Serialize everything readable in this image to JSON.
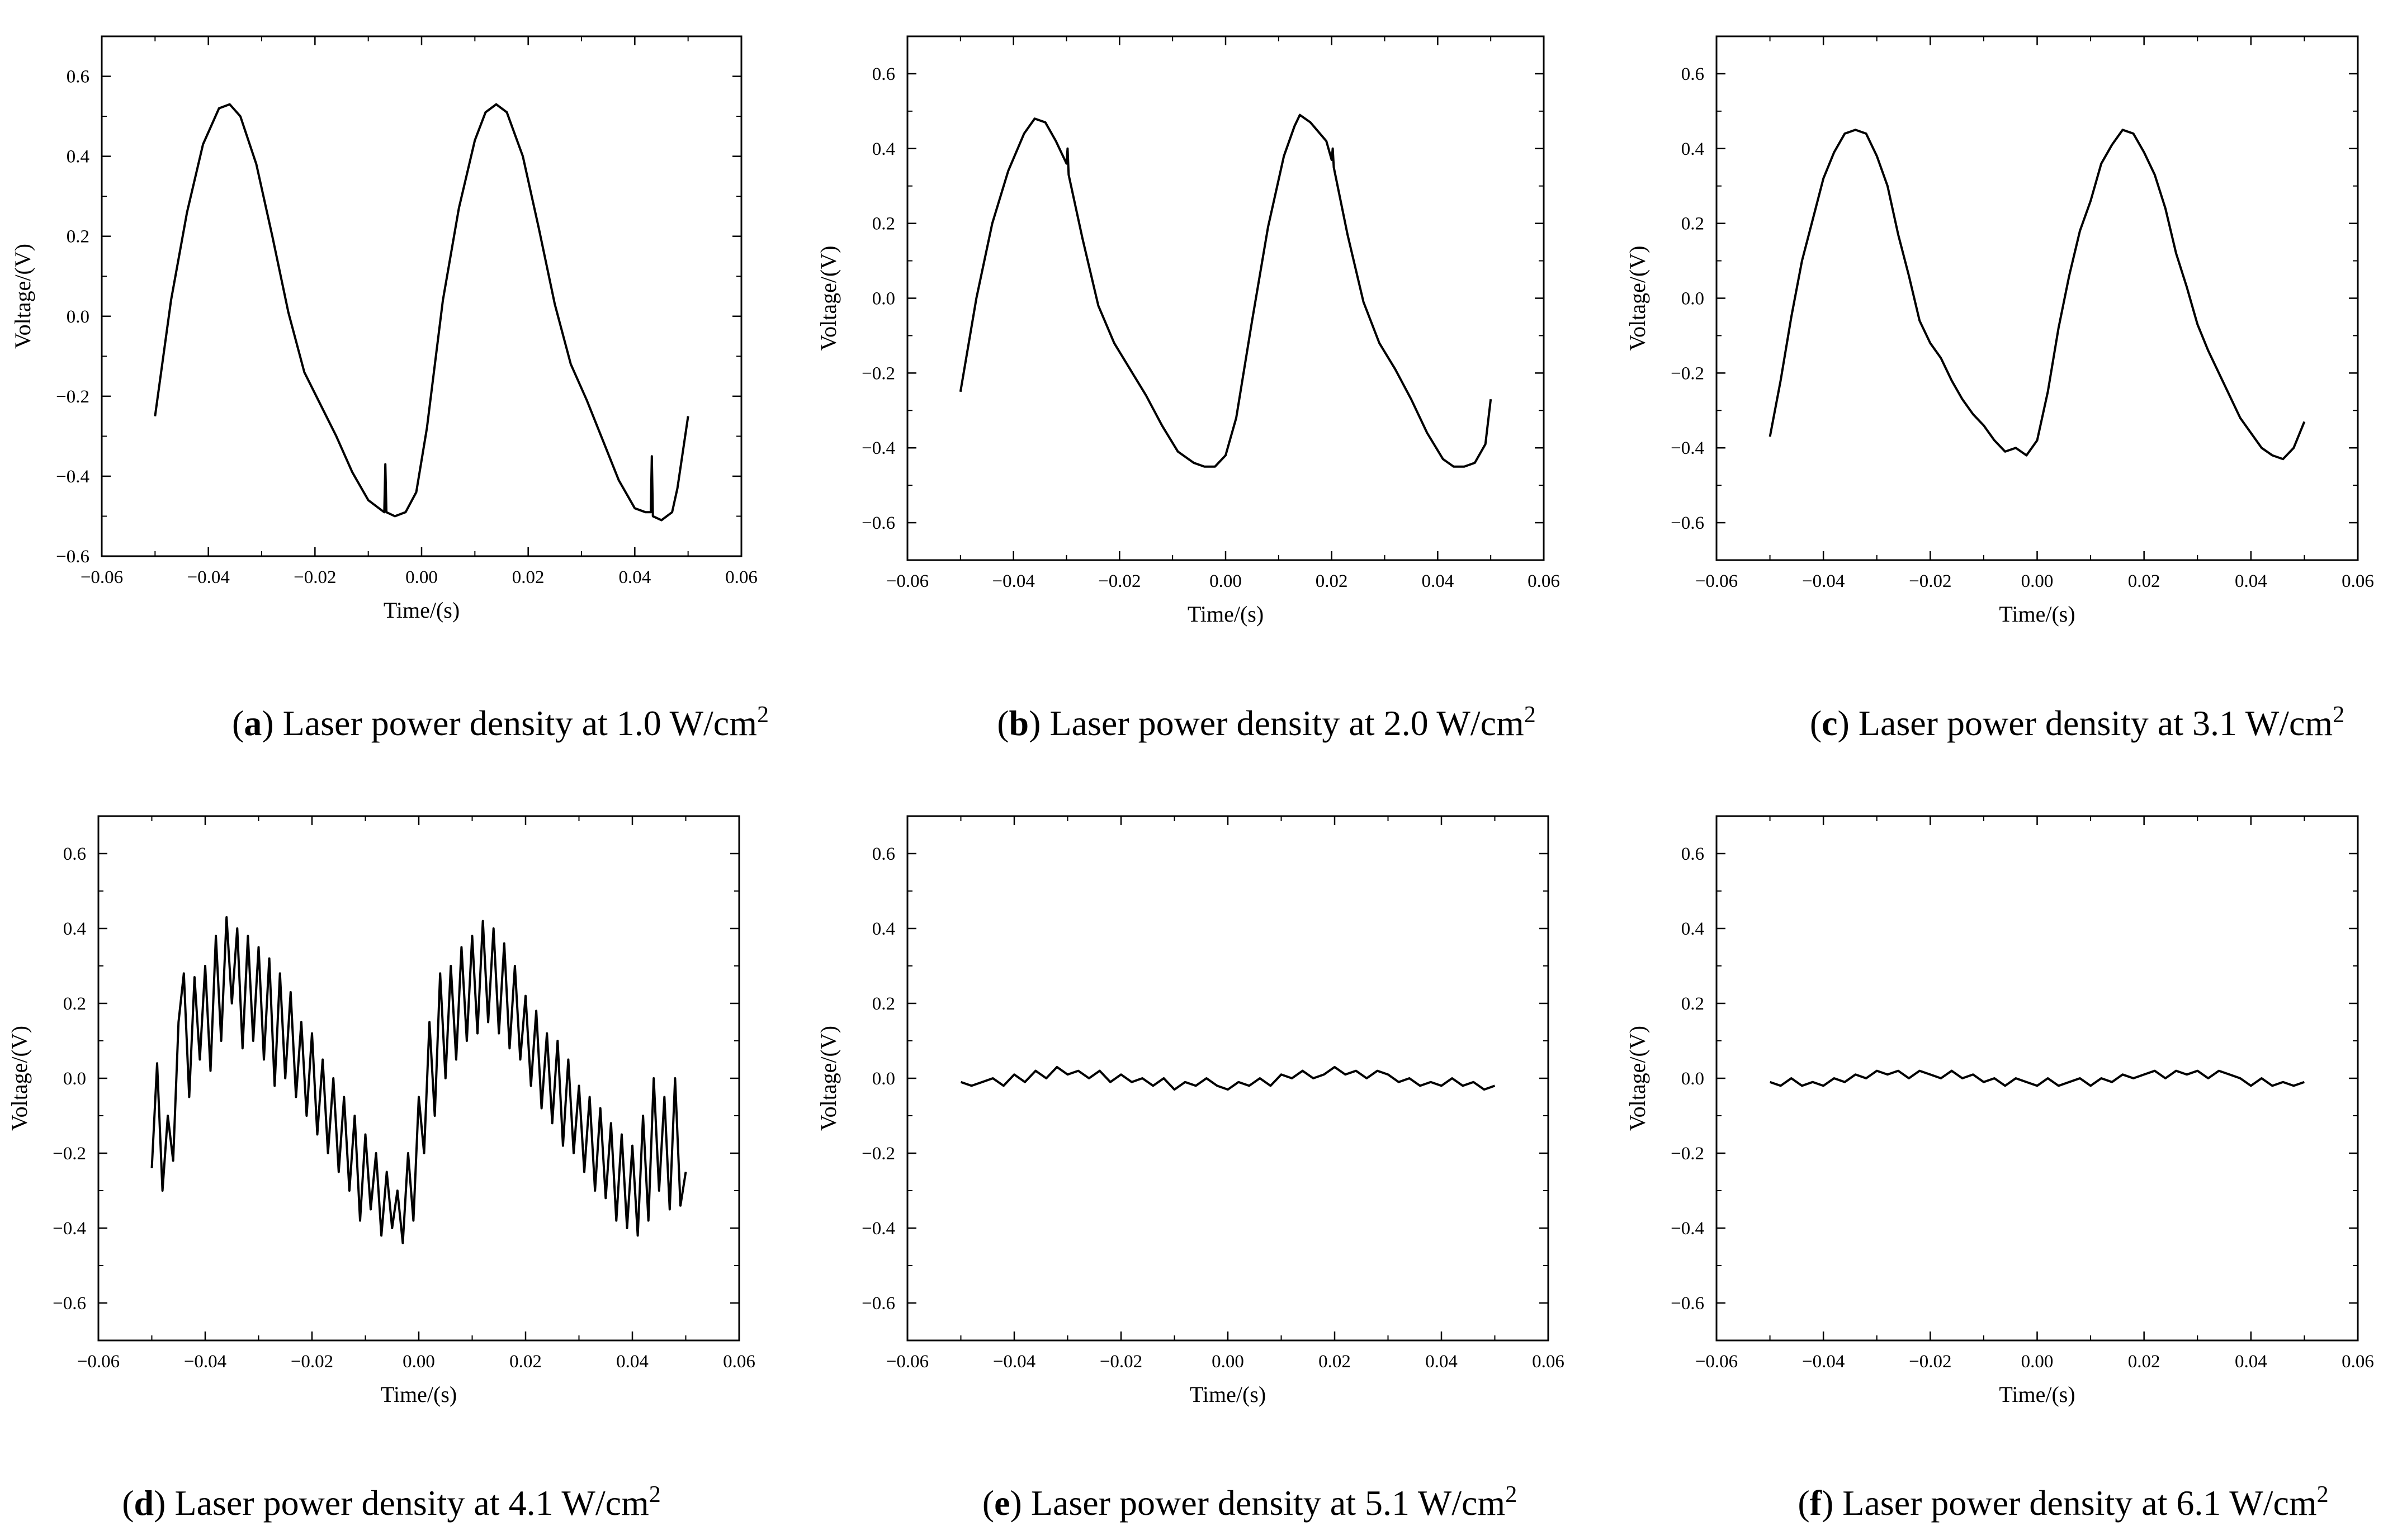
{
  "figure": {
    "captions": [
      {
        "letter": "a",
        "text": " Laser power density at 1.0 W/cm",
        "sup": "2"
      },
      {
        "letter": "b",
        "text": " Laser power density at 2.0 W/cm",
        "sup": "2"
      },
      {
        "letter": "c",
        "text": " Laser power density at 3.1 W/cm",
        "sup": "2"
      },
      {
        "letter": "d",
        "text": " Laser power density at 4.1 W/cm",
        "sup": "2"
      },
      {
        "letter": "e",
        "text": " Laser power density at 5.1 W/cm",
        "sup": "2"
      },
      {
        "letter": "f",
        "text": " Laser power density at 6.1 W/cm",
        "sup": "2"
      }
    ]
  },
  "colors": {
    "line": "#000000",
    "axis": "#000000",
    "background": "#ffffff"
  },
  "chart_data": [
    {
      "id": "a",
      "type": "line",
      "xlabel": "Time/(s)",
      "ylabel": "Voltage/(V)",
      "xlim": [
        -0.06,
        0.06
      ],
      "ylim": [
        -0.6,
        0.7
      ],
      "xticks": [
        -0.06,
        -0.04,
        -0.02,
        0.0,
        0.02,
        0.04,
        0.06
      ],
      "xtick_labels": [
        "−0.06",
        "−0.04",
        "−0.02",
        "0.00",
        "0.02",
        "0.04",
        "0.06"
      ],
      "yticks": [
        -0.6,
        -0.4,
        -0.2,
        0.0,
        0.2,
        0.4,
        0.6
      ],
      "ytick_labels": [
        "−0.6",
        "−0.4",
        "−0.2",
        "0.0",
        "0.2",
        "0.4",
        "0.6"
      ],
      "series": [
        {
          "name": "Voltage",
          "x": [
            -0.05,
            -0.047,
            -0.044,
            -0.041,
            -0.038,
            -0.036,
            -0.034,
            -0.031,
            -0.028,
            -0.025,
            -0.022,
            -0.019,
            -0.016,
            -0.013,
            -0.01,
            -0.008,
            -0.007,
            -0.0068,
            -0.0066,
            -0.005,
            -0.003,
            -0.001,
            0.001,
            0.004,
            0.007,
            0.01,
            0.012,
            0.014,
            0.016,
            0.019,
            0.022,
            0.025,
            0.028,
            0.031,
            0.034,
            0.037,
            0.04,
            0.042,
            0.043,
            0.0432,
            0.0434,
            0.045,
            0.047,
            0.048,
            0.05
          ],
          "y": [
            -0.25,
            0.04,
            0.26,
            0.43,
            0.52,
            0.53,
            0.5,
            0.38,
            0.2,
            0.01,
            -0.14,
            -0.22,
            -0.3,
            -0.39,
            -0.46,
            -0.48,
            -0.49,
            -0.37,
            -0.49,
            -0.5,
            -0.49,
            -0.44,
            -0.28,
            0.04,
            0.27,
            0.44,
            0.51,
            0.53,
            0.51,
            0.4,
            0.22,
            0.03,
            -0.12,
            -0.21,
            -0.31,
            -0.41,
            -0.48,
            -0.49,
            -0.49,
            -0.35,
            -0.5,
            -0.51,
            -0.49,
            -0.43,
            -0.25
          ]
        }
      ]
    },
    {
      "id": "b",
      "type": "line",
      "xlabel": "Time/(s)",
      "ylabel": "Voltage/(V)",
      "xlim": [
        -0.06,
        0.06
      ],
      "ylim": [
        -0.7,
        0.7
      ],
      "xticks": [
        -0.06,
        -0.04,
        -0.02,
        0.0,
        0.02,
        0.04,
        0.06
      ],
      "xtick_labels": [
        "−0.06",
        "−0.04",
        "−0.02",
        "0.00",
        "0.02",
        "0.04",
        "0.06"
      ],
      "yticks": [
        -0.6,
        -0.4,
        -0.2,
        0.0,
        0.2,
        0.4,
        0.6
      ],
      "ytick_labels": [
        "−0.6",
        "−0.4",
        "−0.2",
        "0.0",
        "0.2",
        "0.4",
        "0.6"
      ],
      "series": [
        {
          "name": "Voltage",
          "x": [
            -0.05,
            -0.047,
            -0.044,
            -0.041,
            -0.038,
            -0.036,
            -0.034,
            -0.032,
            -0.03,
            -0.0298,
            -0.0296,
            -0.027,
            -0.024,
            -0.021,
            -0.018,
            -0.015,
            -0.012,
            -0.009,
            -0.006,
            -0.004,
            -0.002,
            0.0,
            0.002,
            0.005,
            0.008,
            0.011,
            0.013,
            0.014,
            0.016,
            0.019,
            0.02,
            0.0202,
            0.0204,
            0.023,
            0.026,
            0.029,
            0.032,
            0.035,
            0.038,
            0.041,
            0.043,
            0.045,
            0.047,
            0.049,
            0.05
          ],
          "y": [
            -0.25,
            0.0,
            0.2,
            0.34,
            0.44,
            0.48,
            0.47,
            0.42,
            0.36,
            0.4,
            0.33,
            0.16,
            -0.02,
            -0.12,
            -0.19,
            -0.26,
            -0.34,
            -0.41,
            -0.44,
            -0.45,
            -0.45,
            -0.42,
            -0.32,
            -0.06,
            0.19,
            0.38,
            0.46,
            0.49,
            0.47,
            0.42,
            0.37,
            0.4,
            0.35,
            0.17,
            -0.01,
            -0.12,
            -0.19,
            -0.27,
            -0.36,
            -0.43,
            -0.45,
            -0.45,
            -0.44,
            -0.39,
            -0.27
          ]
        }
      ]
    },
    {
      "id": "c",
      "type": "line",
      "xlabel": "Time/(s)",
      "ylabel": "Voltage/(V)",
      "xlim": [
        -0.06,
        0.06
      ],
      "ylim": [
        -0.7,
        0.7
      ],
      "xticks": [
        -0.06,
        -0.04,
        -0.02,
        0.0,
        0.02,
        0.04,
        0.06
      ],
      "xtick_labels": [
        "−0.06",
        "−0.04",
        "−0.02",
        "0.00",
        "0.02",
        "0.04",
        "0.06"
      ],
      "yticks": [
        -0.6,
        -0.4,
        -0.2,
        0.0,
        0.2,
        0.4,
        0.6
      ],
      "ytick_labels": [
        "−0.6",
        "−0.4",
        "−0.2",
        "0.0",
        "0.2",
        "0.4",
        "0.6"
      ],
      "series": [
        {
          "name": "Voltage",
          "x": [
            -0.05,
            -0.048,
            -0.046,
            -0.044,
            -0.042,
            -0.04,
            -0.038,
            -0.036,
            -0.034,
            -0.032,
            -0.03,
            -0.028,
            -0.026,
            -0.024,
            -0.022,
            -0.02,
            -0.018,
            -0.016,
            -0.014,
            -0.012,
            -0.01,
            -0.008,
            -0.006,
            -0.004,
            -0.002,
            0.0,
            0.002,
            0.004,
            0.006,
            0.008,
            0.01,
            0.012,
            0.014,
            0.016,
            0.018,
            0.02,
            0.022,
            0.024,
            0.026,
            0.028,
            0.03,
            0.032,
            0.034,
            0.036,
            0.038,
            0.04,
            0.042,
            0.044,
            0.046,
            0.048,
            0.05
          ],
          "y": [
            -0.37,
            -0.22,
            -0.05,
            0.1,
            0.21,
            0.32,
            0.39,
            0.44,
            0.45,
            0.44,
            0.38,
            0.3,
            0.17,
            0.06,
            -0.06,
            -0.12,
            -0.16,
            -0.22,
            -0.27,
            -0.31,
            -0.34,
            -0.38,
            -0.41,
            -0.4,
            -0.42,
            -0.38,
            -0.25,
            -0.08,
            0.06,
            0.18,
            0.26,
            0.36,
            0.41,
            0.45,
            0.44,
            0.39,
            0.33,
            0.24,
            0.12,
            0.03,
            -0.07,
            -0.14,
            -0.2,
            -0.26,
            -0.32,
            -0.36,
            -0.4,
            -0.42,
            -0.43,
            -0.4,
            -0.33
          ]
        }
      ]
    },
    {
      "id": "d",
      "type": "line",
      "xlabel": "Time/(s)",
      "ylabel": "Voltage/(V)",
      "xlim": [
        -0.06,
        0.06
      ],
      "ylim": [
        -0.7,
        0.7
      ],
      "xticks": [
        -0.06,
        -0.04,
        -0.02,
        0.0,
        0.02,
        0.04,
        0.06
      ],
      "xtick_labels": [
        "−0.06",
        "−0.04",
        "−0.02",
        "0.00",
        "0.02",
        "0.04",
        "0.06"
      ],
      "yticks": [
        -0.6,
        -0.4,
        -0.2,
        0.0,
        0.2,
        0.4,
        0.6
      ],
      "ytick_labels": [
        "−0.6",
        "−0.4",
        "−0.2",
        "0.0",
        "0.2",
        "0.4",
        "0.6"
      ],
      "series": [
        {
          "name": "Voltage",
          "x": [
            -0.05,
            -0.049,
            -0.048,
            -0.047,
            -0.046,
            -0.045,
            -0.044,
            -0.043,
            -0.042,
            -0.041,
            -0.04,
            -0.039,
            -0.038,
            -0.037,
            -0.036,
            -0.035,
            -0.034,
            -0.033,
            -0.032,
            -0.031,
            -0.03,
            -0.029,
            -0.028,
            -0.027,
            -0.026,
            -0.025,
            -0.024,
            -0.023,
            -0.022,
            -0.021,
            -0.02,
            -0.019,
            -0.018,
            -0.017,
            -0.016,
            -0.015,
            -0.014,
            -0.013,
            -0.012,
            -0.011,
            -0.01,
            -0.009,
            -0.008,
            -0.007,
            -0.006,
            -0.005,
            -0.004,
            -0.003,
            -0.002,
            -0.001,
            0.0,
            0.001,
            0.002,
            0.003,
            0.004,
            0.005,
            0.006,
            0.007,
            0.008,
            0.009,
            0.01,
            0.011,
            0.012,
            0.013,
            0.014,
            0.015,
            0.016,
            0.017,
            0.018,
            0.019,
            0.02,
            0.021,
            0.022,
            0.023,
            0.024,
            0.025,
            0.026,
            0.027,
            0.028,
            0.029,
            0.03,
            0.031,
            0.032,
            0.033,
            0.034,
            0.035,
            0.036,
            0.037,
            0.038,
            0.039,
            0.04,
            0.041,
            0.042,
            0.043,
            0.044,
            0.045,
            0.046,
            0.047,
            0.048,
            0.049,
            0.05
          ],
          "y": [
            -0.24,
            0.04,
            -0.3,
            -0.1,
            -0.22,
            0.15,
            0.28,
            -0.05,
            0.27,
            0.05,
            0.3,
            0.02,
            0.38,
            0.1,
            0.43,
            0.2,
            0.4,
            0.08,
            0.38,
            0.1,
            0.35,
            0.05,
            0.32,
            -0.02,
            0.28,
            0.0,
            0.23,
            -0.05,
            0.15,
            -0.1,
            0.12,
            -0.15,
            0.05,
            -0.2,
            0.0,
            -0.25,
            -0.05,
            -0.3,
            -0.1,
            -0.38,
            -0.15,
            -0.35,
            -0.2,
            -0.42,
            -0.25,
            -0.4,
            -0.3,
            -0.44,
            -0.2,
            -0.38,
            -0.05,
            -0.2,
            0.15,
            -0.1,
            0.28,
            0.0,
            0.3,
            0.05,
            0.35,
            0.1,
            0.38,
            0.12,
            0.42,
            0.15,
            0.4,
            0.12,
            0.36,
            0.08,
            0.3,
            0.05,
            0.22,
            -0.02,
            0.18,
            -0.08,
            0.12,
            -0.12,
            0.1,
            -0.18,
            0.05,
            -0.2,
            -0.02,
            -0.25,
            -0.05,
            -0.3,
            -0.08,
            -0.32,
            -0.12,
            -0.38,
            -0.15,
            -0.4,
            -0.18,
            -0.42,
            -0.1,
            -0.38,
            0.0,
            -0.3,
            -0.05,
            -0.35,
            0.0,
            -0.34,
            -0.25
          ]
        }
      ]
    },
    {
      "id": "e",
      "type": "line",
      "xlabel": "Time/(s)",
      "ylabel": "Voltage/(V)",
      "xlim": [
        -0.06,
        0.06
      ],
      "ylim": [
        -0.7,
        0.7
      ],
      "xticks": [
        -0.06,
        -0.04,
        -0.02,
        0.0,
        0.02,
        0.04,
        0.06
      ],
      "xtick_labels": [
        "−0.06",
        "−0.04",
        "−0.02",
        "0.00",
        "0.02",
        "0.04",
        "0.06"
      ],
      "yticks": [
        -0.6,
        -0.4,
        -0.2,
        0.0,
        0.2,
        0.4,
        0.6
      ],
      "ytick_labels": [
        "−0.6",
        "−0.4",
        "−0.2",
        "0.0",
        "0.2",
        "0.4",
        "0.6"
      ],
      "series": [
        {
          "name": "Voltage",
          "x": [
            -0.05,
            -0.048,
            -0.046,
            -0.044,
            -0.042,
            -0.04,
            -0.038,
            -0.036,
            -0.034,
            -0.032,
            -0.03,
            -0.028,
            -0.026,
            -0.024,
            -0.022,
            -0.02,
            -0.018,
            -0.016,
            -0.014,
            -0.012,
            -0.01,
            -0.008,
            -0.006,
            -0.004,
            -0.002,
            0.0,
            0.002,
            0.004,
            0.006,
            0.008,
            0.01,
            0.012,
            0.014,
            0.016,
            0.018,
            0.02,
            0.022,
            0.024,
            0.026,
            0.028,
            0.03,
            0.032,
            0.034,
            0.036,
            0.038,
            0.04,
            0.042,
            0.044,
            0.046,
            0.048,
            0.05
          ],
          "y": [
            -0.01,
            -0.02,
            -0.01,
            0.0,
            -0.02,
            0.01,
            -0.01,
            0.02,
            0.0,
            0.03,
            0.01,
            0.02,
            0.0,
            0.02,
            -0.01,
            0.01,
            -0.01,
            0.0,
            -0.02,
            0.0,
            -0.03,
            -0.01,
            -0.02,
            0.0,
            -0.02,
            -0.03,
            -0.01,
            -0.02,
            0.0,
            -0.02,
            0.01,
            0.0,
            0.02,
            0.0,
            0.01,
            0.03,
            0.01,
            0.02,
            0.0,
            0.02,
            0.01,
            -0.01,
            0.0,
            -0.02,
            -0.01,
            -0.02,
            0.0,
            -0.02,
            -0.01,
            -0.03,
            -0.02
          ]
        }
      ]
    },
    {
      "id": "f",
      "type": "line",
      "xlabel": "Time/(s)",
      "ylabel": "Voltage/(V)",
      "xlim": [
        -0.06,
        0.06
      ],
      "ylim": [
        -0.7,
        0.7
      ],
      "xticks": [
        -0.06,
        -0.04,
        -0.02,
        0.0,
        0.02,
        0.04,
        0.06
      ],
      "xtick_labels": [
        "−0.06",
        "−0.04",
        "−0.02",
        "0.00",
        "0.02",
        "0.04",
        "0.06"
      ],
      "yticks": [
        -0.6,
        -0.4,
        -0.2,
        0.0,
        0.2,
        0.4,
        0.6
      ],
      "ytick_labels": [
        "−0.6",
        "−0.4",
        "−0.2",
        "0.0",
        "0.2",
        "0.4",
        "0.6"
      ],
      "series": [
        {
          "name": "Voltage",
          "x": [
            -0.05,
            -0.048,
            -0.046,
            -0.044,
            -0.042,
            -0.04,
            -0.038,
            -0.036,
            -0.034,
            -0.032,
            -0.03,
            -0.028,
            -0.026,
            -0.024,
            -0.022,
            -0.02,
            -0.018,
            -0.016,
            -0.014,
            -0.012,
            -0.01,
            -0.008,
            -0.006,
            -0.004,
            -0.002,
            0.0,
            0.002,
            0.004,
            0.006,
            0.008,
            0.01,
            0.012,
            0.014,
            0.016,
            0.018,
            0.02,
            0.022,
            0.024,
            0.026,
            0.028,
            0.03,
            0.032,
            0.034,
            0.036,
            0.038,
            0.04,
            0.042,
            0.044,
            0.046,
            0.048,
            0.05
          ],
          "y": [
            -0.01,
            -0.02,
            0.0,
            -0.02,
            -0.01,
            -0.02,
            0.0,
            -0.01,
            0.01,
            0.0,
            0.02,
            0.01,
            0.02,
            0.0,
            0.02,
            0.01,
            0.0,
            0.02,
            0.0,
            0.01,
            -0.01,
            0.0,
            -0.02,
            0.0,
            -0.01,
            -0.02,
            0.0,
            -0.02,
            -0.01,
            0.0,
            -0.02,
            0.0,
            -0.01,
            0.01,
            0.0,
            0.01,
            0.02,
            0.0,
            0.02,
            0.01,
            0.02,
            0.0,
            0.02,
            0.01,
            0.0,
            -0.02,
            0.0,
            -0.02,
            -0.01,
            -0.02,
            -0.01
          ]
        }
      ]
    }
  ]
}
